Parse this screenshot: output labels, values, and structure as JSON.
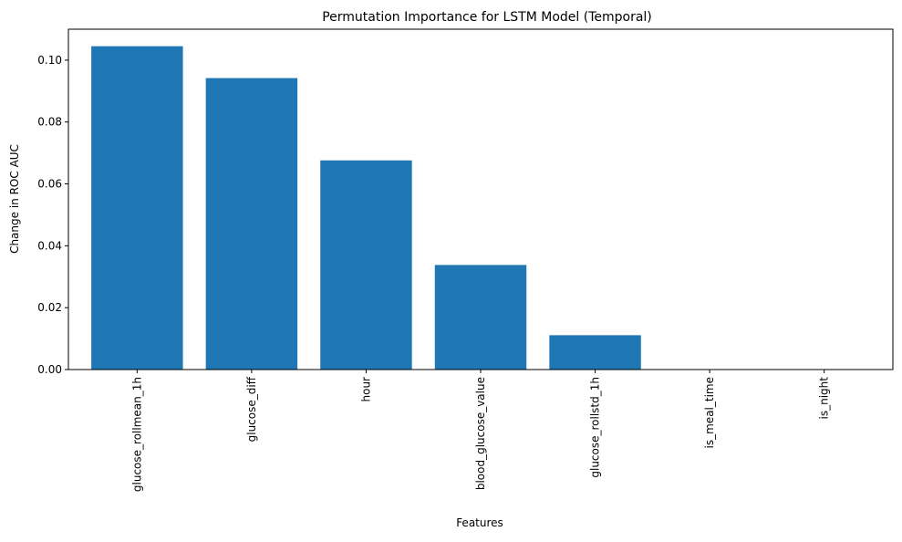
{
  "chart_data": {
    "type": "bar",
    "title": "Permutation Importance for LSTM Model (Temporal)",
    "xlabel": "Features",
    "ylabel": "Change in ROC AUC",
    "categories": [
      "glucose_rollmean_1h",
      "glucose_diff",
      "hour",
      "blood_glucose_value",
      "glucose_rollstd_1h",
      "is_meal_time",
      "is_night"
    ],
    "values": [
      0.1045,
      0.0942,
      0.0676,
      0.0338,
      0.0111,
      0.0,
      0.0
    ],
    "ylim": [
      0,
      0.11
    ],
    "yticks": [
      0.0,
      0.02,
      0.04,
      0.06,
      0.08,
      0.1
    ],
    "ytick_labels": [
      "0.00",
      "0.02",
      "0.04",
      "0.06",
      "0.08",
      "0.10"
    ],
    "grid": false,
    "bar_color": "#1f77b4"
  }
}
